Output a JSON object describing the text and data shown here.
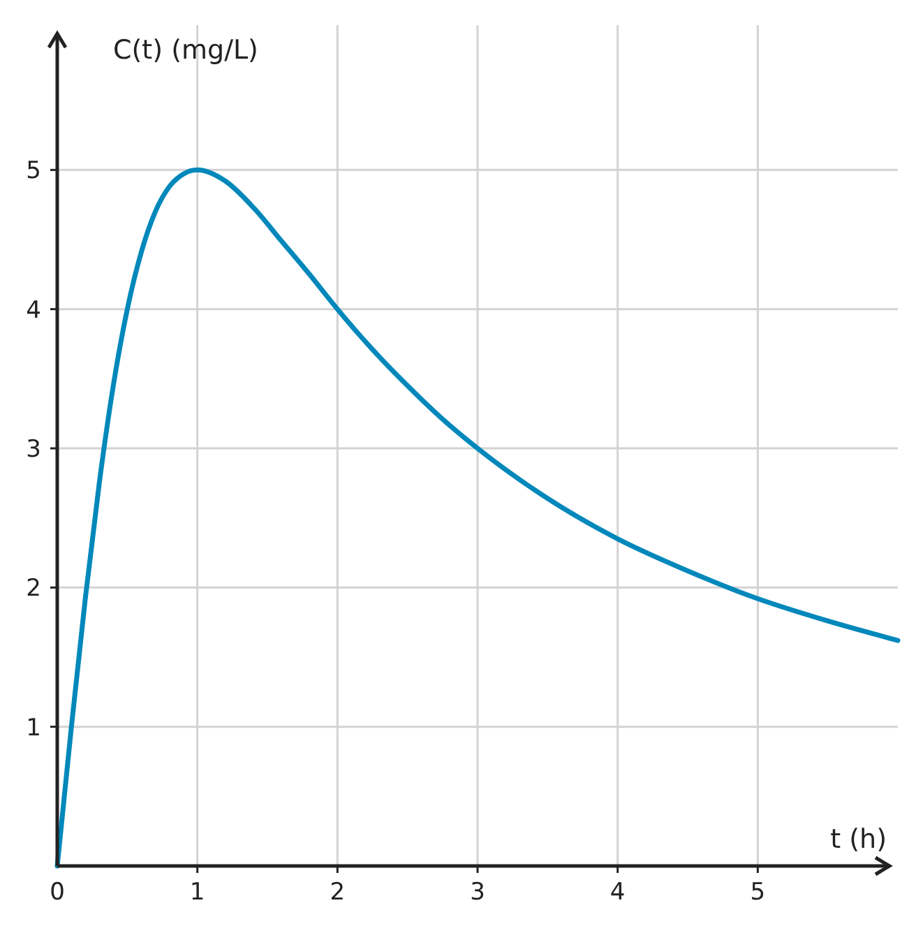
{
  "chart_data": {
    "type": "line",
    "xlabel": "t (h)",
    "ylabel": "C(t) (mg/L)",
    "xlim": [
      0,
      6
    ],
    "ylim": [
      0,
      6
    ],
    "xticks": [
      {
        "value": 0,
        "label": "0"
      },
      1,
      2,
      3,
      4,
      5
    ],
    "yticks": [
      1,
      2,
      3,
      4,
      5
    ],
    "grid": true,
    "marker": "none",
    "line_style": "solid",
    "series": [
      {
        "color": "#0088bb",
        "x": [
          0,
          0.1,
          0.2,
          0.3,
          0.4,
          0.5,
          0.6,
          0.7,
          0.8,
          0.9,
          1,
          1.2,
          1.4,
          1.6,
          1.8,
          2,
          2.25,
          2.5,
          2.75,
          3,
          3.5,
          4,
          4.5,
          5,
          5.5,
          6
        ],
        "values": [
          0,
          0.99,
          1.92,
          2.75,
          3.45,
          4,
          4.41,
          4.7,
          4.88,
          4.97,
          5,
          4.92,
          4.73,
          4.49,
          4.25,
          4,
          3.71,
          3.45,
          3.21,
          3,
          2.64,
          2.35,
          2.12,
          1.92,
          1.76,
          1.62
        ]
      }
    ]
  }
}
